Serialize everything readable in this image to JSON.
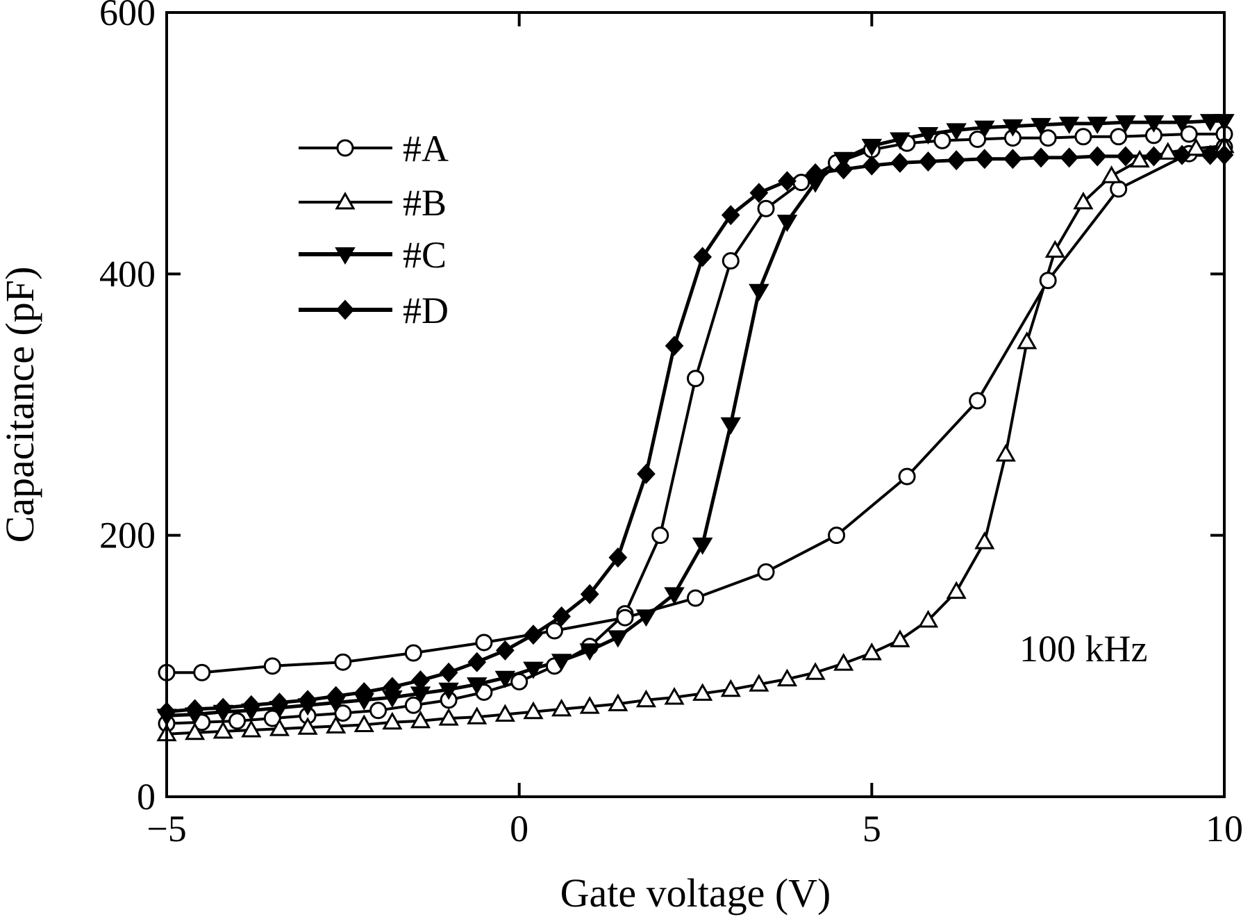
{
  "chart_data": {
    "type": "line",
    "title": "",
    "xlabel": "Gate voltage (V)",
    "ylabel": "Capacitance (pF)",
    "xlim": [
      -5,
      10
    ],
    "ylim": [
      0,
      600
    ],
    "xticks": [
      -5,
      0,
      5,
      10
    ],
    "xtick_labels": [
      "−5",
      "0",
      "5",
      "10"
    ],
    "yticks": [
      0,
      200,
      400,
      600
    ],
    "ytick_labels": [
      "0",
      "200",
      "400",
      "600"
    ],
    "grid": false,
    "legend_position": "top-left",
    "annotation": "100 kHz",
    "series": [
      {
        "name": "#A",
        "marker": "circle-open",
        "forward": [
          [
            -5,
            95
          ],
          [
            -4.5,
            95
          ],
          [
            -3.5,
            100
          ],
          [
            -2.5,
            103
          ],
          [
            -1.5,
            110
          ],
          [
            -0.5,
            118
          ],
          [
            0.5,
            127
          ],
          [
            1.5,
            137
          ],
          [
            2.5,
            152
          ],
          [
            3.5,
            172
          ],
          [
            4.5,
            200
          ],
          [
            5.5,
            245
          ],
          [
            6.5,
            303
          ],
          [
            7.5,
            395
          ],
          [
            8.5,
            465
          ],
          [
            9.5,
            492
          ],
          [
            10,
            497
          ]
        ],
        "reverse": [
          [
            10,
            507
          ],
          [
            9.5,
            507
          ],
          [
            9,
            506
          ],
          [
            8.5,
            505
          ],
          [
            8,
            505
          ],
          [
            7.5,
            504
          ],
          [
            7,
            504
          ],
          [
            6.5,
            503
          ],
          [
            6,
            502
          ],
          [
            5.5,
            500
          ],
          [
            5,
            495
          ],
          [
            4.5,
            485
          ],
          [
            4,
            470
          ],
          [
            3.5,
            450
          ],
          [
            3,
            410
          ],
          [
            2.5,
            320
          ],
          [
            2,
            200
          ],
          [
            1.5,
            140
          ],
          [
            1,
            115
          ],
          [
            0.5,
            100
          ],
          [
            0,
            88
          ],
          [
            -0.5,
            80
          ],
          [
            -1,
            74
          ],
          [
            -1.5,
            70
          ],
          [
            -2,
            66
          ],
          [
            -2.5,
            64
          ],
          [
            -3,
            62
          ],
          [
            -3.5,
            60
          ],
          [
            -4,
            58
          ],
          [
            -4.5,
            57
          ],
          [
            -5,
            56
          ]
        ]
      },
      {
        "name": "#B",
        "marker": "triangle-up-open",
        "forward": [
          [
            -5,
            48
          ],
          [
            -4.6,
            49
          ],
          [
            -4.2,
            50
          ],
          [
            -3.8,
            51
          ],
          [
            -3.4,
            52
          ],
          [
            -3.0,
            53
          ],
          [
            -2.6,
            54
          ],
          [
            -2.2,
            55
          ],
          [
            -1.8,
            57
          ],
          [
            -1.4,
            58
          ],
          [
            -1.0,
            60
          ],
          [
            -0.6,
            61
          ],
          [
            -0.2,
            63
          ],
          [
            0.2,
            65
          ],
          [
            0.6,
            67
          ],
          [
            1.0,
            69
          ],
          [
            1.4,
            71
          ],
          [
            1.8,
            74
          ],
          [
            2.2,
            76
          ],
          [
            2.6,
            79
          ],
          [
            3.0,
            82
          ],
          [
            3.4,
            86
          ],
          [
            3.8,
            90
          ],
          [
            4.2,
            95
          ],
          [
            4.6,
            102
          ],
          [
            5.0,
            110
          ],
          [
            5.4,
            120
          ],
          [
            5.8,
            135
          ],
          [
            6.2,
            157
          ],
          [
            6.6,
            195
          ],
          [
            6.9,
            262
          ],
          [
            7.2,
            348
          ],
          [
            7.6,
            418
          ],
          [
            8.0,
            455
          ],
          [
            8.4,
            475
          ],
          [
            8.8,
            487
          ],
          [
            9.2,
            493
          ],
          [
            9.6,
            496
          ],
          [
            10,
            498
          ]
        ],
        "reverse": []
      },
      {
        "name": "#C",
        "marker": "triangle-down-filled",
        "forward": [
          [
            -5,
            62
          ],
          [
            -4.6,
            63
          ],
          [
            -4.2,
            65
          ],
          [
            -3.8,
            66
          ],
          [
            -3.4,
            68
          ],
          [
            -3.0,
            70
          ],
          [
            -2.6,
            72
          ],
          [
            -2.2,
            74
          ],
          [
            -1.8,
            76
          ],
          [
            -1.4,
            79
          ],
          [
            -1.0,
            82
          ],
          [
            -0.6,
            86
          ],
          [
            -0.2,
            91
          ],
          [
            0.2,
            98
          ],
          [
            0.6,
            104
          ],
          [
            1.0,
            112
          ],
          [
            1.4,
            122
          ],
          [
            1.8,
            138
          ],
          [
            2.2,
            155
          ],
          [
            2.6,
            193
          ],
          [
            3.0,
            285
          ],
          [
            3.4,
            387
          ],
          [
            3.8,
            440
          ],
          [
            4.2,
            470
          ],
          [
            4.6,
            488
          ],
          [
            5.0,
            498
          ],
          [
            5.4,
            503
          ],
          [
            5.8,
            507
          ],
          [
            6.2,
            510
          ],
          [
            6.6,
            512
          ],
          [
            7.0,
            513
          ],
          [
            7.4,
            514
          ],
          [
            7.8,
            515
          ],
          [
            8.2,
            515
          ],
          [
            8.6,
            516
          ],
          [
            9.0,
            516
          ],
          [
            9.4,
            516
          ],
          [
            9.8,
            517
          ],
          [
            10,
            517
          ]
        ],
        "reverse": []
      },
      {
        "name": "#D",
        "marker": "diamond-filled",
        "forward": [
          [
            -5,
            65
          ],
          [
            -4.6,
            67
          ],
          [
            -4.2,
            68
          ],
          [
            -3.8,
            70
          ],
          [
            -3.4,
            72
          ],
          [
            -3.0,
            74
          ],
          [
            -2.6,
            77
          ],
          [
            -2.2,
            80
          ],
          [
            -1.8,
            84
          ],
          [
            -1.4,
            89
          ],
          [
            -1.0,
            95
          ],
          [
            -0.6,
            103
          ],
          [
            -0.2,
            112
          ],
          [
            0.2,
            124
          ],
          [
            0.6,
            138
          ],
          [
            1.0,
            155
          ],
          [
            1.4,
            183
          ],
          [
            1.8,
            247
          ],
          [
            2.2,
            345
          ],
          [
            2.6,
            413
          ],
          [
            3.0,
            445
          ],
          [
            3.4,
            462
          ],
          [
            3.8,
            471
          ],
          [
            4.2,
            477
          ],
          [
            4.6,
            480
          ],
          [
            5.0,
            483
          ],
          [
            5.4,
            485
          ],
          [
            5.8,
            486
          ],
          [
            6.2,
            487
          ],
          [
            6.6,
            488
          ],
          [
            7.0,
            488
          ],
          [
            7.4,
            489
          ],
          [
            7.8,
            489
          ],
          [
            8.2,
            490
          ],
          [
            8.6,
            490
          ],
          [
            9.0,
            490
          ],
          [
            9.4,
            491
          ],
          [
            9.8,
            491
          ],
          [
            10,
            491
          ]
        ],
        "reverse": []
      }
    ]
  }
}
